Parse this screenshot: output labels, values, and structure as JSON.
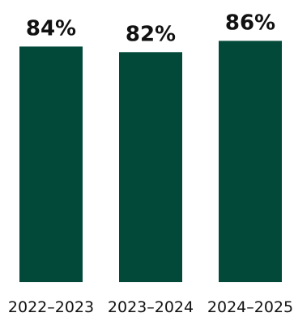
{
  "chart_data": {
    "type": "bar",
    "categories": [
      "2022–2023",
      "2023–2024",
      "2024–2025"
    ],
    "values": [
      84,
      82,
      86
    ],
    "value_labels": [
      "84%",
      "82%",
      "86%"
    ],
    "unit": "%",
    "title": "",
    "xlabel": "",
    "ylabel": "",
    "grid": false,
    "legend": "none",
    "bar_color": "#03493a"
  }
}
